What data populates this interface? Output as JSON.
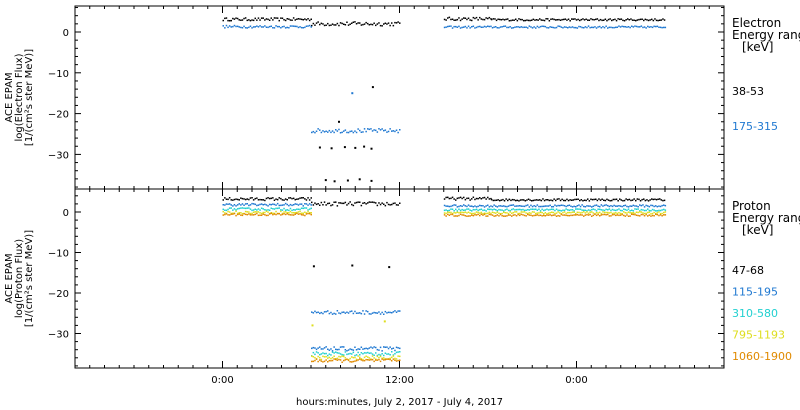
{
  "chart_data": [
    {
      "type": "scatter",
      "panel": "electron",
      "ylabel_lines": [
        "ACE EPAM",
        "log(Electron Flux)",
        "[1/(cm²s ster MeV)]"
      ],
      "ylim": [
        -38,
        6
      ],
      "yticks": [
        0,
        -10,
        -20,
        -30
      ],
      "legend_title_lines": [
        "Electron",
        "Energy ranges",
        "[keV]"
      ],
      "series": [
        {
          "name": "38-53",
          "color": "#000000",
          "segments": [
            {
              "x0": 0.0,
              "x1": 6.0,
              "y": 3.1,
              "jitter": 0.35
            },
            {
              "x0": 6.0,
              "x1": 12.0,
              "y": 2.0,
              "jitter": 0.5
            },
            {
              "x0": 15.0,
              "x1": 18.2,
              "y": 3.2,
              "jitter": 0.4
            },
            {
              "x0": 18.2,
              "x1": 30.0,
              "y": 3.0,
              "jitter": 0.25
            }
          ],
          "points": [
            {
              "x": 10.2,
              "y": -13.5
            },
            {
              "x": 7.9,
              "y": -22.0
            },
            {
              "x": 6.6,
              "y": -28.3
            },
            {
              "x": 7.4,
              "y": -28.5
            },
            {
              "x": 8.3,
              "y": -28.2
            },
            {
              "x": 9.0,
              "y": -28.4
            },
            {
              "x": 9.6,
              "y": -28.1
            },
            {
              "x": 10.1,
              "y": -28.6
            },
            {
              "x": 7.0,
              "y": -36.3
            },
            {
              "x": 7.6,
              "y": -36.6
            },
            {
              "x": 8.5,
              "y": -36.4
            },
            {
              "x": 9.3,
              "y": -36.1
            },
            {
              "x": 10.1,
              "y": -36.5
            }
          ]
        },
        {
          "name": "175-315",
          "color": "#1f78d1",
          "segments": [
            {
              "x0": 0.0,
              "x1": 6.0,
              "y": 1.3,
              "jitter": 0.3
            },
            {
              "x0": 15.0,
              "x1": 30.0,
              "y": 1.2,
              "jitter": 0.25
            },
            {
              "x0": 6.0,
              "x1": 12.0,
              "y": -24.2,
              "jitter": 0.5
            }
          ],
          "points": [
            {
              "x": 8.8,
              "y": -15.0
            }
          ]
        }
      ]
    },
    {
      "type": "scatter",
      "panel": "proton",
      "ylabel_lines": [
        "ACE EPAM",
        "log(Proton Flux)",
        "[1/(cm²s ster MeV)]"
      ],
      "ylim": [
        -38,
        4
      ],
      "yticks": [
        0,
        -10,
        -20,
        -30
      ],
      "xlabel": "hours:minutes, July  2, 2017 - July  4, 2017",
      "xlim": [
        -10,
        34
      ],
      "xticks": [
        0,
        12,
        24
      ],
      "xtick_labels": [
        "0:00",
        "12:00",
        "0:00"
      ],
      "legend_title_lines": [
        "Proton",
        "Energy ranges",
        "[keV]"
      ],
      "series": [
        {
          "name": "47-68",
          "color": "#000000",
          "segments": [
            {
              "x0": 0.0,
              "x1": 6.0,
              "y": 3.2,
              "jitter": 0.35
            },
            {
              "x0": 6.0,
              "x1": 12.0,
              "y": 2.0,
              "jitter": 0.5
            },
            {
              "x0": 15.0,
              "x1": 18.2,
              "y": 3.3,
              "jitter": 0.35
            },
            {
              "x0": 18.2,
              "x1": 30.0,
              "y": 3.0,
              "jitter": 0.25
            }
          ],
          "points": [
            {
              "x": 6.2,
              "y": -13.4
            },
            {
              "x": 8.8,
              "y": -13.2
            },
            {
              "x": 11.3,
              "y": -13.6
            }
          ]
        },
        {
          "name": "115-195",
          "color": "#1f78d1",
          "segments": [
            {
              "x0": 0.0,
              "x1": 6.0,
              "y": 1.8,
              "jitter": 0.3
            },
            {
              "x0": 15.0,
              "x1": 30.0,
              "y": 1.5,
              "jitter": 0.25
            },
            {
              "x0": 6.0,
              "x1": 12.0,
              "y": -24.8,
              "jitter": 0.45
            },
            {
              "x0": 6.0,
              "x1": 12.0,
              "y": -33.8,
              "jitter": 0.5
            }
          ],
          "points": []
        },
        {
          "name": "310-580",
          "color": "#22d0d0",
          "segments": [
            {
              "x0": 0.0,
              "x1": 6.0,
              "y": 0.7,
              "jitter": 0.3
            },
            {
              "x0": 15.0,
              "x1": 30.0,
              "y": 0.5,
              "jitter": 0.25
            },
            {
              "x0": 6.0,
              "x1": 12.0,
              "y": -35.0,
              "jitter": 0.5
            }
          ],
          "points": []
        },
        {
          "name": "795-1193",
          "color": "#dede1e",
          "segments": [
            {
              "x0": 0.0,
              "x1": 6.0,
              "y": -0.1,
              "jitter": 0.3
            },
            {
              "x0": 15.0,
              "x1": 30.0,
              "y": -0.2,
              "jitter": 0.25
            },
            {
              "x0": 6.0,
              "x1": 12.0,
              "y": -36.0,
              "jitter": 0.45
            }
          ],
          "points": [
            {
              "x": 6.1,
              "y": -28.0
            },
            {
              "x": 11.0,
              "y": -27.0
            }
          ]
        },
        {
          "name": "1060-1900",
          "color": "#e08a00",
          "segments": [
            {
              "x0": 0.0,
              "x1": 6.0,
              "y": -0.6,
              "jitter": 0.3
            },
            {
              "x0": 15.0,
              "x1": 30.0,
              "y": -0.8,
              "jitter": 0.25
            },
            {
              "x0": 6.0,
              "x1": 12.0,
              "y": -36.7,
              "jitter": 0.4
            }
          ],
          "points": []
        }
      ]
    }
  ]
}
